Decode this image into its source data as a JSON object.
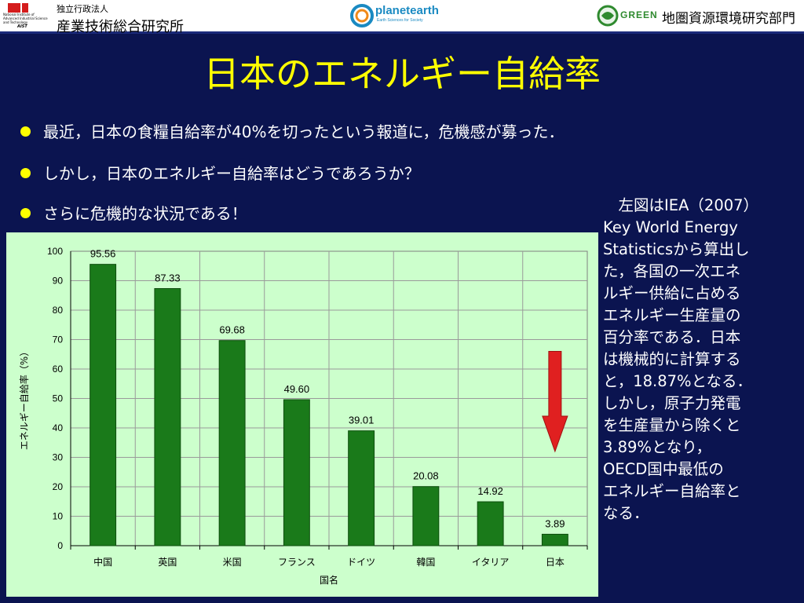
{
  "header": {
    "aist_sub": "独立行政法人",
    "aist_name": "産業技術総合研究所",
    "aist_small": "National Institute of Advanced Industrial Science and Technology",
    "aist_mark": "AIST",
    "planet_name": "planetearth",
    "planet_sub": "Earth Sciences for Society",
    "green_brand": "GREEN",
    "green_org": "地圏資源環境研究部門"
  },
  "title": "日本のエネルギー自給率",
  "bullets": [
    "最近，日本の食糧自給率が40%を切ったという報道に，危機感が募った．",
    "しかし，日本のエネルギー自給率はどうであろうか？",
    "さらに危機的な状況である！"
  ],
  "note_lines": [
    "　左図はIEA（2007）",
    "Key World Energy",
    "Statisticsから算出し",
    "た，各国の一次エネ",
    "ルギー供給に占める",
    "エネルギー生産量の",
    "百分率である．日本",
    "は機械的に計算する",
    "と，18.87%となる．",
    "しかし，原子力発電",
    "を生産量から除くと",
    "3.89%となり，",
    "OECD国中最低の",
    "エネルギー自給率と",
    "なる．"
  ],
  "colors": {
    "background": "#0b1450",
    "title": "#ffff00",
    "bar": "#1a7a1a",
    "plot_bg": "#ccffcc",
    "arrow": "#e02020"
  },
  "chart_data": {
    "type": "bar",
    "categories": [
      "中国",
      "英国",
      "米国",
      "フランス",
      "ドイツ",
      "韓国",
      "イタリア",
      "日本"
    ],
    "values": [
      95.56,
      87.33,
      69.68,
      49.6,
      39.01,
      20.08,
      14.92,
      3.89
    ],
    "value_labels": [
      "95.56",
      "87.33",
      "69.68",
      "49.60",
      "39.01",
      "20.08",
      "14.92",
      "3.89"
    ],
    "xlabel": "国名",
    "ylabel": "エネルギー自給率（%）",
    "ylim": [
      0,
      100
    ],
    "yticks": [
      "0",
      "10",
      "20",
      "30",
      "40",
      "50",
      "60",
      "70",
      "80",
      "90",
      "100"
    ],
    "grid": true,
    "annotation": "down-arrow above 日本"
  }
}
